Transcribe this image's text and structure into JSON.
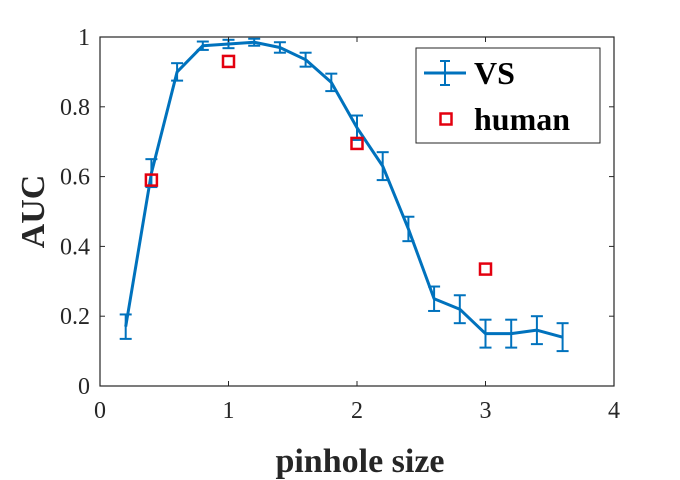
{
  "chart_data": {
    "type": "line",
    "title": "",
    "xlabel": "pinhole size",
    "ylabel": "AUC",
    "xlim": [
      0,
      4
    ],
    "ylim": [
      0,
      1
    ],
    "xticks": [
      0,
      1,
      2,
      3,
      4
    ],
    "xtick_labels": [
      "0",
      "1",
      "2",
      "3",
      "4"
    ],
    "yticks": [
      0,
      0.2,
      0.4,
      0.6,
      0.8,
      1
    ],
    "ytick_labels": [
      "0",
      "0.2",
      "0.4",
      "0.6",
      "0.8",
      "1"
    ],
    "grid": false,
    "legend_position": "top-right",
    "series": [
      {
        "name": "VS",
        "style": "line-errorbar",
        "color": "#0072BD",
        "x": [
          0.2,
          0.4,
          0.6,
          0.8,
          1.0,
          1.2,
          1.4,
          1.6,
          1.8,
          2.0,
          2.2,
          2.4,
          2.6,
          2.8,
          3.0,
          3.2,
          3.4,
          3.6
        ],
        "y": [
          0.17,
          0.61,
          0.9,
          0.975,
          0.98,
          0.985,
          0.97,
          0.935,
          0.87,
          0.74,
          0.63,
          0.45,
          0.25,
          0.22,
          0.15,
          0.15,
          0.16,
          0.14
        ],
        "err": [
          0.035,
          0.04,
          0.025,
          0.012,
          0.012,
          0.01,
          0.015,
          0.02,
          0.025,
          0.035,
          0.04,
          0.035,
          0.035,
          0.04,
          0.04,
          0.04,
          0.04,
          0.04
        ]
      },
      {
        "name": "human",
        "style": "square-marker",
        "color": "#E3000F",
        "x": [
          0.4,
          1.0,
          2.0,
          3.0
        ],
        "y": [
          0.59,
          0.93,
          0.695,
          0.335
        ]
      }
    ]
  }
}
